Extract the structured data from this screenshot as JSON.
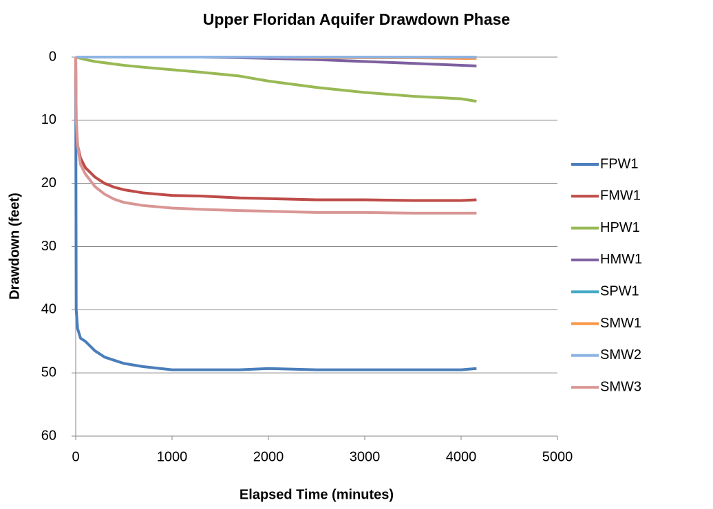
{
  "chart_data": {
    "type": "line",
    "title": "Upper Floridan Aquifer Drawdown Phase",
    "x_label": "Elapsed Time (minutes)",
    "y_label": "Drawdown (feet)",
    "x": [
      0,
      5,
      20,
      50,
      100,
      200,
      300,
      400,
      500,
      700,
      1000,
      1300,
      1700,
      2000,
      2500,
      3000,
      3500,
      4000,
      4160
    ],
    "xlim": [
      0,
      5000
    ],
    "xticks": [
      0,
      1000,
      2000,
      3000,
      4000,
      5000
    ],
    "ylim": [
      60,
      0
    ],
    "yticks": [
      0,
      10,
      20,
      30,
      40,
      50,
      60
    ],
    "grid": true,
    "legend": "right",
    "series": [
      {
        "name": "FPW1",
        "color": "#4a7ebb",
        "values": [
          0,
          40,
          43,
          44.5,
          45,
          46.5,
          47.5,
          48,
          48.5,
          49,
          49.5,
          49.5,
          49.5,
          49.3,
          49.5,
          49.5,
          49.5,
          49.5,
          49.3
        ]
      },
      {
        "name": "FMW1",
        "color": "#be4b48",
        "values": [
          0,
          10,
          14,
          16,
          17.5,
          19,
          20,
          20.6,
          21,
          21.5,
          21.9,
          22,
          22.3,
          22.4,
          22.6,
          22.6,
          22.7,
          22.7,
          22.6
        ]
      },
      {
        "name": "HPW1",
        "color": "#98b954",
        "values": [
          0,
          0,
          0.1,
          0.2,
          0.4,
          0.7,
          0.9,
          1.1,
          1.3,
          1.6,
          2,
          2.4,
          3,
          3.8,
          4.8,
          5.6,
          6.2,
          6.6,
          7
        ]
      },
      {
        "name": "HMW1",
        "color": "#7d60a0",
        "values": [
          0,
          0,
          0,
          0,
          0,
          0,
          0,
          0,
          0,
          0,
          0,
          0,
          0.1,
          0.2,
          0.4,
          0.7,
          1,
          1.3,
          1.4
        ]
      },
      {
        "name": "SPW1",
        "color": "#46aac5",
        "values": [
          0,
          0,
          0,
          0,
          0,
          0,
          0,
          0,
          0,
          0,
          0,
          0,
          0,
          0,
          0,
          0,
          0,
          0,
          0
        ]
      },
      {
        "name": "SMW1",
        "color": "#f79646",
        "values": [
          0,
          0,
          0,
          0,
          0,
          0,
          0,
          0,
          0,
          0,
          0,
          0,
          0,
          0,
          0.1,
          0.1,
          0.1,
          0.2,
          0.2
        ]
      },
      {
        "name": "SMW2",
        "color": "#8eb4e3",
        "values": [
          0,
          0,
          0,
          0,
          0,
          0,
          0,
          0,
          0,
          0,
          0,
          0,
          0,
          0,
          0,
          0,
          0,
          0,
          0
        ]
      },
      {
        "name": "SMW3",
        "color": "#d99694",
        "values": [
          0,
          10,
          14,
          17,
          18.5,
          20.5,
          21.7,
          22.5,
          23,
          23.5,
          23.9,
          24.1,
          24.3,
          24.4,
          24.6,
          24.6,
          24.7,
          24.7,
          24.7
        ]
      }
    ]
  }
}
